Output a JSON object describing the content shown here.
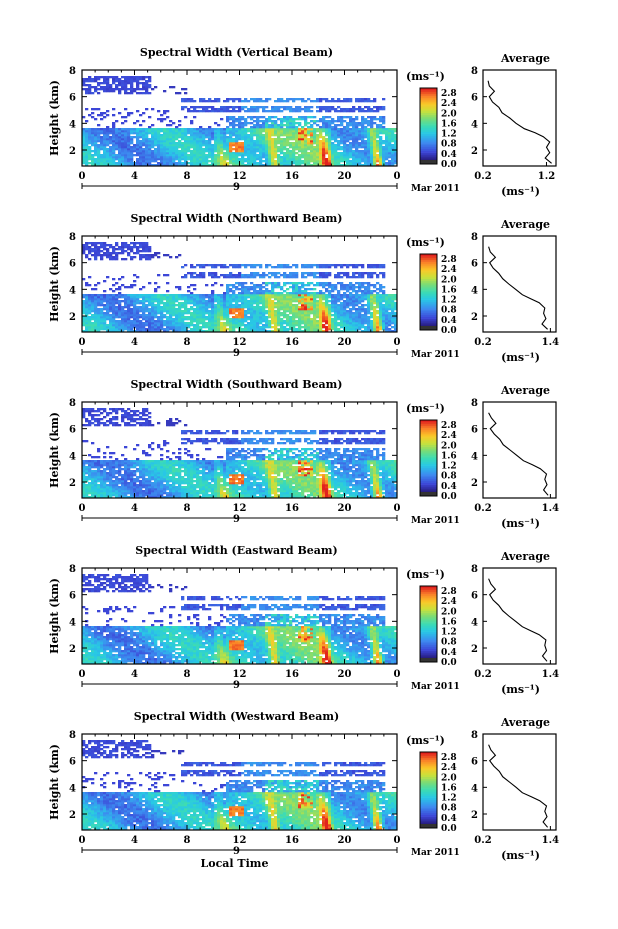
{
  "chart_data": [
    {
      "type": "heatmap",
      "title": "Spectral Width (Vertical Beam)",
      "ylabel": "Height (km)",
      "xticks": [
        "0",
        "4",
        "8",
        "12",
        "16",
        "20",
        "0"
      ],
      "xlim": [
        0,
        24
      ],
      "yticks": [
        "2",
        "4",
        "6",
        "8"
      ],
      "ylim": [
        0.8,
        8
      ],
      "date_day": "9",
      "date_label": "Mar 2011",
      "colorbar": {
        "unit": "(ms⁻¹)",
        "ticks": [
          "2.8",
          "2.4",
          "2.0",
          "1.6",
          "1.2",
          "0.8",
          "0.4",
          "0.0"
        ],
        "range": [
          0,
          3.0
        ]
      },
      "profile": {
        "title": "Average",
        "xlabel": "(ms⁻¹)",
        "xticks": [
          "0.2",
          "1.2"
        ],
        "xlim": [
          0.2,
          1.35
        ],
        "yticks": [
          "2",
          "4",
          "6",
          "8"
        ],
        "ylim": [
          0.8,
          8
        ],
        "height": [
          1.0,
          1.4,
          1.8,
          2.2,
          2.6,
          3.0,
          3.3,
          3.6,
          4.0,
          4.4,
          4.8,
          5.2,
          5.6,
          6.0,
          6.4,
          6.8,
          7.2
        ],
        "value": [
          1.28,
          1.18,
          1.25,
          1.2,
          1.25,
          1.15,
          1.02,
          0.85,
          0.72,
          0.62,
          0.5,
          0.45,
          0.35,
          0.3,
          0.38,
          0.3,
          0.28
        ]
      }
    },
    {
      "type": "heatmap",
      "title": "Spectral Width (Northward Beam)",
      "ylabel": "Height (km)",
      "xticks": [
        "0",
        "4",
        "8",
        "12",
        "16",
        "20",
        "0"
      ],
      "xlim": [
        0,
        24
      ],
      "yticks": [
        "2",
        "4",
        "6",
        "8"
      ],
      "ylim": [
        0.8,
        8
      ],
      "date_day": "9",
      "date_label": "Mar 2011",
      "colorbar": {
        "unit": "(ms⁻¹)",
        "ticks": [
          "2.8",
          "2.4",
          "2.0",
          "1.6",
          "1.2",
          "0.8",
          "0.4",
          "0.0"
        ],
        "range": [
          0,
          3.0
        ]
      },
      "profile": {
        "title": "Average",
        "xlabel": "(ms⁻¹)",
        "xticks": [
          "0.2",
          "1.4"
        ],
        "xlim": [
          0.2,
          1.5
        ],
        "yticks": [
          "2",
          "4",
          "6",
          "8"
        ],
        "ylim": [
          0.8,
          8
        ],
        "height": [
          1.0,
          1.4,
          1.8,
          2.2,
          2.6,
          3.0,
          3.3,
          3.6,
          4.0,
          4.4,
          4.8,
          5.2,
          5.6,
          6.0,
          6.4,
          6.8,
          7.2
        ],
        "value": [
          1.35,
          1.25,
          1.32,
          1.28,
          1.3,
          1.2,
          1.05,
          0.9,
          0.78,
          0.66,
          0.55,
          0.48,
          0.38,
          0.32,
          0.42,
          0.33,
          0.3
        ]
      }
    },
    {
      "type": "heatmap",
      "title": "Spectral Width (Southward Beam)",
      "ylabel": "Height (km)",
      "xticks": [
        "0",
        "4",
        "8",
        "12",
        "16",
        "20",
        "0"
      ],
      "xlim": [
        0,
        24
      ],
      "yticks": [
        "2",
        "4",
        "6",
        "8"
      ],
      "ylim": [
        0.8,
        8
      ],
      "date_day": "9",
      "date_label": "Mar 2011",
      "colorbar": {
        "unit": "(ms⁻¹)",
        "ticks": [
          "2.8",
          "2.4",
          "2.0",
          "1.6",
          "1.2",
          "0.8",
          "0.4",
          "0.0"
        ],
        "range": [
          0,
          3.0
        ]
      },
      "profile": {
        "title": "Average",
        "xlabel": "(ms⁻¹)",
        "xticks": [
          "0.2",
          "1.4"
        ],
        "xlim": [
          0.2,
          1.5
        ],
        "yticks": [
          "2",
          "4",
          "6",
          "8"
        ],
        "ylim": [
          0.8,
          8
        ],
        "height": [
          1.0,
          1.4,
          1.8,
          2.2,
          2.6,
          3.0,
          3.3,
          3.6,
          4.0,
          4.4,
          4.8,
          5.2,
          5.6,
          6.0,
          6.4,
          6.8,
          7.2
        ],
        "value": [
          1.36,
          1.28,
          1.34,
          1.3,
          1.33,
          1.22,
          1.08,
          0.92,
          0.8,
          0.68,
          0.56,
          0.5,
          0.4,
          0.33,
          0.43,
          0.35,
          0.3
        ]
      }
    },
    {
      "type": "heatmap",
      "title": "Spectral Width (Eastward Beam)",
      "ylabel": "Height (km)",
      "xticks": [
        "0",
        "4",
        "8",
        "12",
        "16",
        "20",
        "0"
      ],
      "xlim": [
        0,
        24
      ],
      "yticks": [
        "2",
        "4",
        "6",
        "8"
      ],
      "ylim": [
        0.8,
        8
      ],
      "date_day": "9",
      "date_label": "Mar 2011",
      "colorbar": {
        "unit": "(ms⁻¹)",
        "ticks": [
          "2.8",
          "2.4",
          "2.0",
          "1.6",
          "1.2",
          "0.8",
          "0.4",
          "0.0"
        ],
        "range": [
          0,
          3.0
        ]
      },
      "profile": {
        "title": "Average",
        "xlabel": "(ms⁻¹)",
        "xticks": [
          "0.2",
          "1.4"
        ],
        "xlim": [
          0.2,
          1.5
        ],
        "yticks": [
          "2",
          "4",
          "6",
          "8"
        ],
        "ylim": [
          0.8,
          8
        ],
        "height": [
          1.0,
          1.4,
          1.8,
          2.2,
          2.6,
          3.0,
          3.3,
          3.6,
          4.0,
          4.4,
          4.8,
          5.2,
          5.6,
          6.0,
          6.4,
          6.8,
          7.2
        ],
        "value": [
          1.34,
          1.26,
          1.33,
          1.3,
          1.32,
          1.2,
          1.05,
          0.9,
          0.78,
          0.66,
          0.55,
          0.48,
          0.38,
          0.32,
          0.42,
          0.34,
          0.3
        ]
      }
    },
    {
      "type": "heatmap",
      "title": "Spectral Width (Westward Beam)",
      "ylabel": "Height (km)",
      "xlabel": "Local Time",
      "xticks": [
        "0",
        "4",
        "8",
        "12",
        "16",
        "20",
        "0"
      ],
      "xlim": [
        0,
        24
      ],
      "yticks": [
        "2",
        "4",
        "6",
        "8"
      ],
      "ylim": [
        0.8,
        8
      ],
      "date_day": "9",
      "date_label": "Mar 2011",
      "colorbar": {
        "unit": "(ms⁻¹)",
        "ticks": [
          "2.8",
          "2.4",
          "2.0",
          "1.6",
          "1.2",
          "0.8",
          "0.4",
          "0.0"
        ],
        "range": [
          0,
          3.0
        ]
      },
      "profile": {
        "title": "Average",
        "xlabel": "(ms⁻¹)",
        "xticks": [
          "0.2",
          "1.4"
        ],
        "xlim": [
          0.2,
          1.5
        ],
        "yticks": [
          "2",
          "4",
          "6",
          "8"
        ],
        "ylim": [
          0.8,
          8
        ],
        "height": [
          1.0,
          1.4,
          1.8,
          2.2,
          2.6,
          3.0,
          3.3,
          3.6,
          4.0,
          4.4,
          4.8,
          5.2,
          5.6,
          6.0,
          6.4,
          6.8,
          7.2
        ],
        "value": [
          1.35,
          1.27,
          1.34,
          1.3,
          1.33,
          1.21,
          1.06,
          0.9,
          0.79,
          0.67,
          0.55,
          0.49,
          0.39,
          0.32,
          0.42,
          0.34,
          0.3
        ]
      }
    }
  ]
}
